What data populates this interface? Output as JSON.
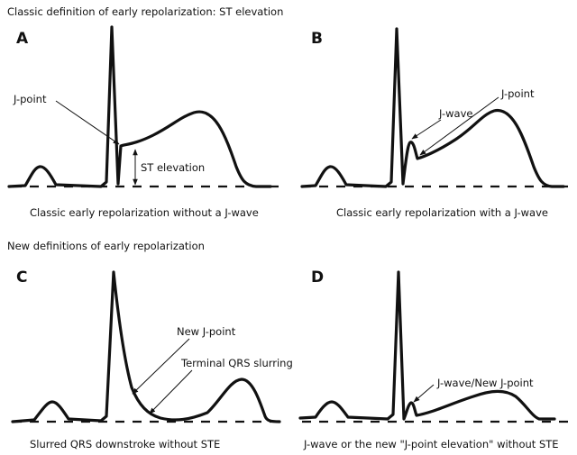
{
  "sections": {
    "classic_title": "Classic definition of early repolarization: ST elevation",
    "new_title": "New definitions of early repolarization"
  },
  "panels": [
    {
      "letter": "A",
      "annotations": [
        "J-point",
        "ST elevation"
      ],
      "caption": "Classic early repolarization without a J-wave"
    },
    {
      "letter": "B",
      "annotations": [
        "J-point",
        "J-wave"
      ],
      "caption": "Classic early repolarization with a J-wave"
    },
    {
      "letter": "C",
      "annotations": [
        "New J-point",
        "Terminal QRS slurring"
      ],
      "caption": "Slurred QRS downstroke without STE"
    },
    {
      "letter": "D",
      "annotations": [
        "J-wave/New J-point"
      ],
      "caption": "J-wave or the new \"J-point elevation\" without STE"
    }
  ]
}
